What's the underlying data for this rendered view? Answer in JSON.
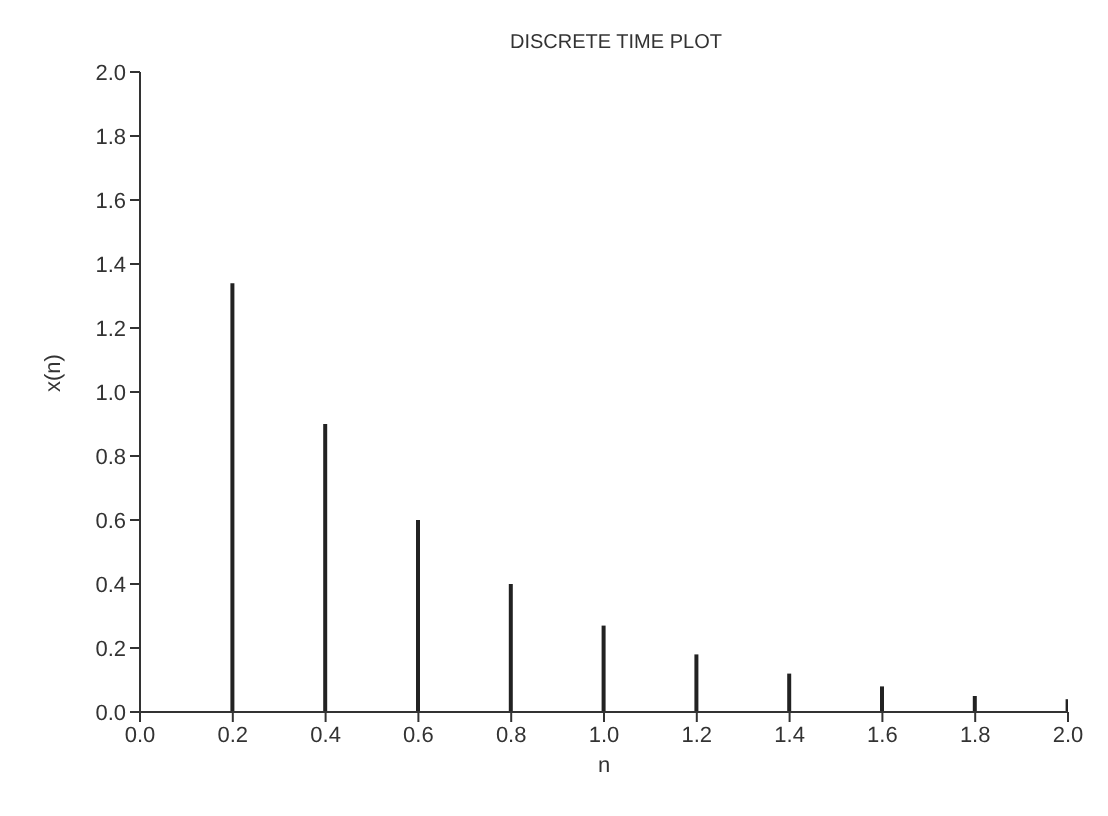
{
  "chart_data": {
    "type": "bar",
    "title": "DISCRETE TIME PLOT",
    "xlabel": "n",
    "ylabel": "x(n)",
    "x": [
      0.2,
      0.4,
      0.6,
      0.8,
      1.0,
      1.2,
      1.4,
      1.6,
      1.8,
      2.0
    ],
    "values": [
      1.34,
      0.9,
      0.6,
      0.4,
      0.27,
      0.18,
      0.12,
      0.08,
      0.05,
      0.04
    ],
    "color": "#222222",
    "xlim": [
      0,
      2
    ],
    "xticks": [
      {
        "value": 0,
        "label": "0.0"
      },
      0.2,
      0.4,
      0.6,
      0.8,
      {
        "value": 1,
        "label": "1.0"
      },
      1.2,
      1.4,
      1.6,
      1.8,
      {
        "value": 2,
        "label": "2.0"
      }
    ],
    "ylim": [
      0,
      2
    ],
    "yticks": [
      {
        "value": 0,
        "label": "0.0"
      },
      0.2,
      0.4,
      0.6,
      0.8,
      {
        "value": 1,
        "label": "1.0"
      },
      1.2,
      1.4,
      1.6,
      1.8,
      {
        "value": 2,
        "label": "2.0"
      }
    ],
    "grid": false,
    "legend": false
  }
}
